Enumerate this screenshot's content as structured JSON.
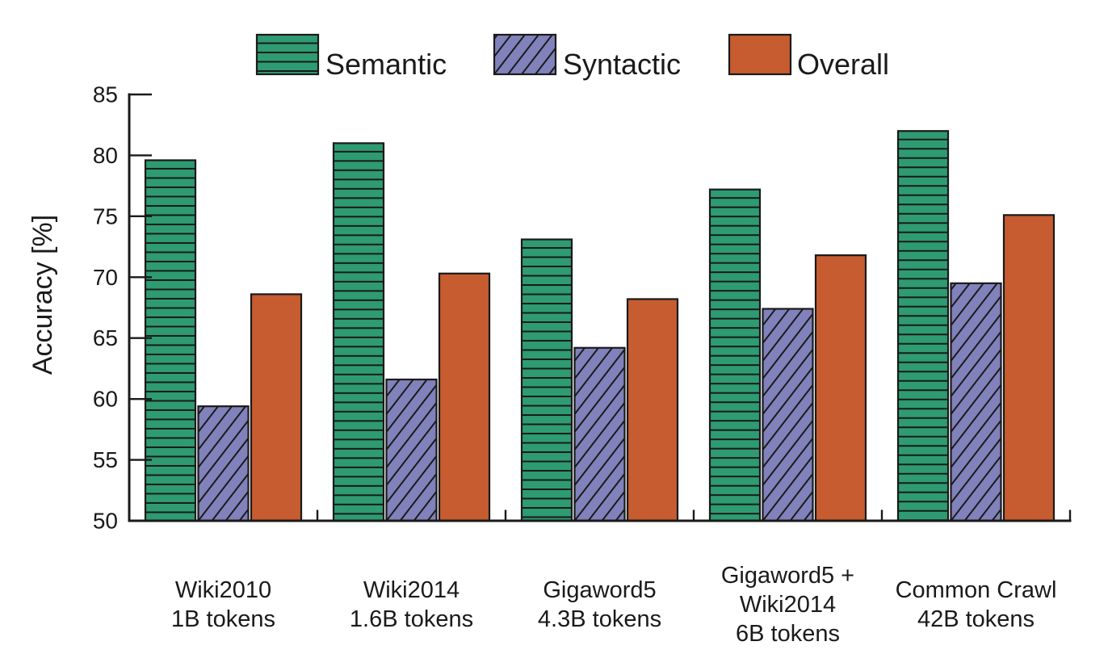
{
  "chart_data": {
    "type": "bar",
    "title": "",
    "ylabel": "Accuracy [%]",
    "ylim": [
      50,
      85
    ],
    "yticks": [
      85,
      80,
      75,
      70,
      65,
      60,
      55,
      50
    ],
    "ytick_labels": [
      "85",
      "80",
      "75",
      "70",
      "65",
      "60",
      "55",
      "50"
    ],
    "grid": false,
    "legend_position": "top",
    "categories": [
      {
        "lines": [
          "Wiki2010",
          "1B tokens"
        ]
      },
      {
        "lines": [
          "Wiki2014",
          "1.6B tokens"
        ]
      },
      {
        "lines": [
          "Gigaword5",
          "4.3B tokens"
        ]
      },
      {
        "lines": [
          "Gigaword5 +",
          "Wiki2014",
          "6B tokens"
        ]
      },
      {
        "lines": [
          "Common Crawl",
          "42B tokens"
        ]
      }
    ],
    "series": [
      {
        "name": "Semantic",
        "color": "#2E9B72",
        "hatch": "horizontal",
        "values": [
          79.6,
          81.0,
          73.1,
          77.2,
          82.0
        ]
      },
      {
        "name": "Syntactic",
        "color": "#8181BB",
        "hatch": "diagonal",
        "values": [
          59.4,
          61.6,
          64.2,
          67.4,
          69.5
        ]
      },
      {
        "name": "Overall",
        "color": "#C65C2F",
        "hatch": "none",
        "values": [
          68.6,
          70.3,
          68.2,
          71.8,
          75.1
        ]
      }
    ]
  },
  "colors": {
    "axis": "#1a1a1a",
    "text": "#1a1a1a",
    "hatch_line": "#1a1a1a",
    "background": "#ffffff"
  }
}
